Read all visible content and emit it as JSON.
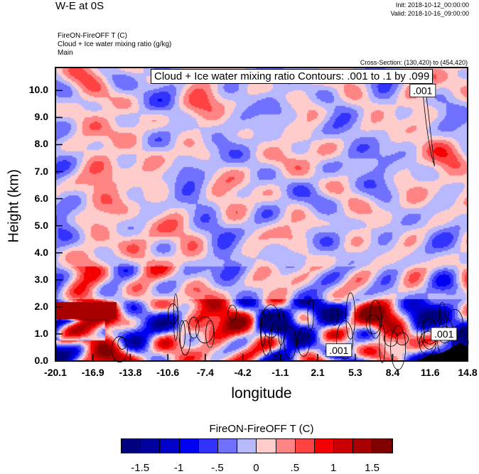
{
  "header": {
    "title": "W-E at 0S",
    "init": "Init: 2018-10-12_00:00:00",
    "valid": "Valid: 2018-10-16_09:00:00",
    "subtitles": [
      "FireON-FireOFF T   (C)",
      "Cloud + Ice water mixing ratio   (g/kg)",
      "Main"
    ],
    "cross_section": "Cross-Section: (130,420) to (454,420)"
  },
  "chart_data": {
    "type": "heatmap",
    "title": "W-E at 0S",
    "contour_title": "Cloud + Ice water mixing ratio Contours: .001 to .1 by .099",
    "xlabel": "longitude",
    "ylabel": "Height (km)",
    "xlim": [
      -20.1,
      14.8
    ],
    "ylim": [
      0,
      10.85
    ],
    "xticks": [
      "-20.1",
      "-16.9",
      "-13.8",
      "-10.6",
      "-7.4",
      "-4.2",
      "-1.1",
      "2.1",
      "5.3",
      "8.4",
      "11.6",
      "14.8"
    ],
    "yticks": [
      "0.0",
      "1.0",
      "2.0",
      "3.0",
      "4.0",
      "5.0",
      "6.0",
      "7.0",
      "8.0",
      "9.0",
      "10.0"
    ],
    "contour_labels": [
      {
        "text": ".001",
        "x": 11.0,
        "y": 10.0
      },
      {
        "text": ".001",
        "x": 3.9,
        "y": 0.4
      },
      {
        "text": ".001",
        "x": 12.8,
        "y": 1.0
      }
    ],
    "colorbar": {
      "title": "FireON-FireOFF T  (C)",
      "levels": [
        -1.5,
        -1.25,
        -1,
        -0.75,
        -0.5,
        -0.25,
        0,
        0.25,
        0.5,
        0.75,
        1,
        1.25,
        1.5
      ],
      "labels": [
        "-1.5",
        "-1",
        "-.5",
        "0",
        ".5",
        "1",
        "1.5"
      ],
      "colors": [
        "#00007f",
        "#00009f",
        "#0000c8",
        "#0000f0",
        "#3333ff",
        "#7171ff",
        "#b8b8ff",
        "#ffcccc",
        "#ff8484",
        "#ff4242",
        "#f40000",
        "#cb0000",
        "#a80000",
        "#800000"
      ]
    }
  }
}
